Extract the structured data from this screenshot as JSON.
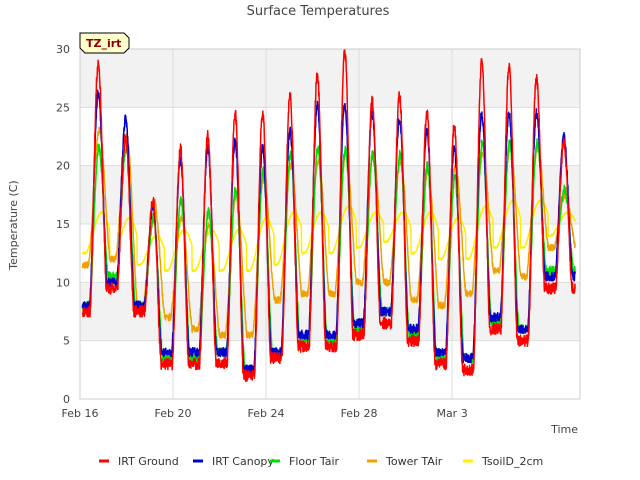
{
  "chart_data": {
    "type": "line",
    "title": "Surface Temperatures",
    "xlabel": "Time",
    "ylabel": "Temperature (C)",
    "badge": "TZ_irt",
    "ylim": [
      0,
      30
    ],
    "yticks": [
      0,
      5,
      10,
      15,
      20,
      25,
      30
    ],
    "xlim": [
      0,
      21.5
    ],
    "xticks": [
      {
        "value": 0,
        "label": "Feb 16"
      },
      {
        "value": 4,
        "label": "Feb 20"
      },
      {
        "value": 8,
        "label": "Feb 24"
      },
      {
        "value": 12,
        "label": "Feb 28"
      },
      {
        "value": 16,
        "label": "Mar 3"
      }
    ],
    "grid": true,
    "legend_position": "bottom",
    "colors": {
      "IRT Ground": "#ff0000",
      "IRT Canopy": "#0000cc",
      "Floor Tair": "#00dd00",
      "Tower TAir": "#f0a000",
      "TsoilD_2cm": "#ffee00"
    },
    "daily": {
      "day_offset": [
        0,
        1,
        2,
        3,
        4,
        5,
        6,
        7,
        8,
        9,
        10,
        11,
        12,
        13,
        14,
        15,
        16,
        17
      ],
      "IRT Ground": {
        "max": [
          28.8,
          22.5,
          17.0,
          21.5,
          22.5,
          24.5,
          24.5,
          26.0,
          27.8,
          29.8,
          25.5,
          26.0,
          24.5,
          23.5,
          29.0,
          28.5,
          27.5,
          22.0
        ],
        "min": [
          7.5,
          9.5,
          7.5,
          3.0,
          3.0,
          3.0,
          2.0,
          3.5,
          4.5,
          4.5,
          5.5,
          6.5,
          5.0,
          3.0,
          2.5,
          6.0,
          5.0,
          9.5
        ]
      },
      "IRT Canopy": {
        "max": [
          26.2,
          24.0,
          16.5,
          20.5,
          21.5,
          22.0,
          21.5,
          23.0,
          25.2,
          25.2,
          24.5,
          24.0,
          23.0,
          21.5,
          24.5,
          24.5,
          24.5,
          22.5
        ],
        "min": [
          8.0,
          10.0,
          8.0,
          4.0,
          4.0,
          4.0,
          2.5,
          4.0,
          5.5,
          5.5,
          6.5,
          7.5,
          6.0,
          4.0,
          3.5,
          7.0,
          6.0,
          10.5
        ]
      },
      "Floor Tair": {
        "max": [
          21.5,
          21.5,
          15.5,
          17.0,
          16.0,
          18.0,
          19.5,
          21.0,
          21.5,
          21.5,
          21.0,
          21.0,
          20.0,
          19.0,
          22.0,
          22.0,
          22.0,
          18.0
        ],
        "min": [
          8.0,
          10.5,
          8.0,
          3.5,
          3.5,
          4.0,
          2.5,
          4.0,
          5.0,
          5.0,
          6.0,
          7.5,
          5.5,
          3.5,
          3.5,
          6.5,
          6.0,
          11.0
        ]
      },
      "Tower TAir": {
        "max": [
          23.0,
          22.5,
          17.0,
          15.5,
          15.0,
          17.5,
          19.0,
          20.0,
          20.5,
          21.0,
          21.0,
          20.5,
          19.5,
          20.0,
          21.0,
          21.5,
          21.5,
          17.5
        ],
        "min": [
          11.5,
          12.0,
          8.0,
          7.0,
          6.0,
          5.5,
          5.5,
          8.5,
          9.0,
          9.0,
          10.0,
          10.0,
          8.5,
          8.0,
          9.0,
          11.0,
          10.5,
          13.0
        ]
      },
      "TsoilD_2cm": {
        "max": [
          16.0,
          15.5,
          14.0,
          14.5,
          14.5,
          14.5,
          15.5,
          16.0,
          16.0,
          16.5,
          16.0,
          16.0,
          16.0,
          15.5,
          16.5,
          17.0,
          17.0,
          16.0
        ],
        "min": [
          12.5,
          12.0,
          11.5,
          11.0,
          11.0,
          11.0,
          11.0,
          11.5,
          12.5,
          12.5,
          13.0,
          13.5,
          12.5,
          12.0,
          12.0,
          13.0,
          13.0,
          14.0
        ]
      }
    },
    "series": [
      {
        "name": "IRT Ground"
      },
      {
        "name": "IRT Canopy"
      },
      {
        "name": "Floor Tair"
      },
      {
        "name": "Tower TAir"
      },
      {
        "name": "TsoilD_2cm"
      }
    ]
  }
}
